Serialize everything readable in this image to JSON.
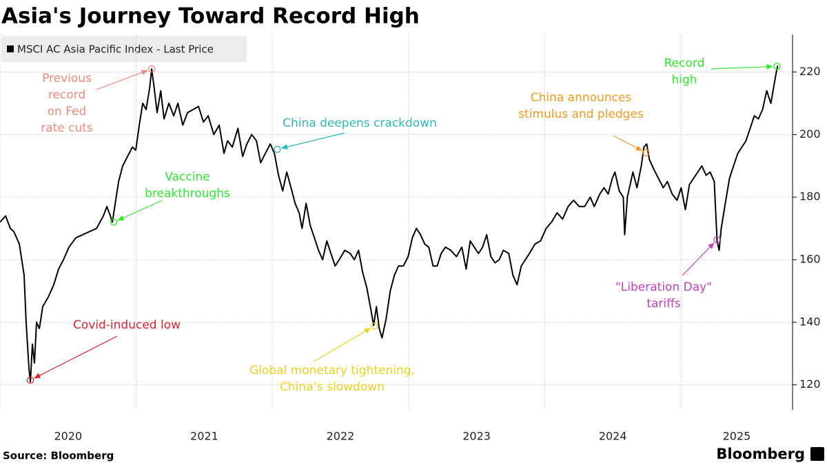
{
  "chart_data": {
    "type": "line",
    "title": "Asia's Journey Toward Record High",
    "source": "Source: Bloomberg",
    "brand": "Bloomberg",
    "legend": "top-left",
    "grid": true,
    "x": [
      2020.0,
      2020.041,
      2020.076,
      2020.101,
      2020.142,
      2020.177,
      2020.192,
      2020.213,
      2020.223,
      2020.238,
      2020.253,
      2020.268,
      2020.289,
      2020.314,
      2020.354,
      2020.395,
      2020.43,
      2020.466,
      2020.506,
      2020.557,
      2020.608,
      2020.658,
      2020.709,
      2020.759,
      2020.785,
      2020.81,
      2020.825,
      2020.846,
      2020.871,
      2020.901,
      2020.937,
      2020.972,
      2020.997,
      2021.023,
      2021.048,
      2021.073,
      2021.099,
      2021.114,
      2021.129,
      2021.154,
      2021.18,
      2021.205,
      2021.24,
      2021.276,
      2021.306,
      2021.342,
      2021.377,
      2021.418,
      2021.458,
      2021.494,
      2021.529,
      2021.57,
      2021.61,
      2021.645,
      2021.671,
      2021.706,
      2021.747,
      2021.782,
      2021.813,
      2021.848,
      2021.883,
      2021.914,
      2021.949,
      2021.985,
      2022.015,
      2022.045,
      2022.076,
      2022.106,
      2022.137,
      2022.167,
      2022.197,
      2022.218,
      2022.248,
      2022.278,
      2022.309,
      2022.339,
      2022.369,
      2022.4,
      2022.43,
      2022.461,
      2022.491,
      2022.532,
      2022.572,
      2022.602,
      2022.633,
      2022.663,
      2022.694,
      2022.724,
      2022.744,
      2022.764,
      2022.785,
      2022.805,
      2022.835,
      2022.866,
      2022.896,
      2022.926,
      2022.962,
      2022.997,
      2023.028,
      2023.058,
      2023.088,
      2023.119,
      2023.149,
      2023.18,
      2023.21,
      2023.24,
      2023.271,
      2023.311,
      2023.352,
      2023.392,
      2023.423,
      2023.453,
      2023.483,
      2023.514,
      2023.544,
      2023.574,
      2023.605,
      2023.635,
      2023.666,
      2023.696,
      2023.736,
      2023.767,
      2023.797,
      2023.828,
      2023.858,
      2023.888,
      2023.929,
      2023.969,
      2024.01,
      2024.05,
      2024.091,
      2024.131,
      2024.172,
      2024.212,
      2024.253,
      2024.293,
      2024.334,
      2024.364,
      2024.405,
      2024.435,
      2024.466,
      2024.496,
      2024.516,
      2024.547,
      2024.577,
      2024.587,
      2024.607,
      2024.648,
      2024.678,
      2024.709,
      2024.729,
      2024.749,
      2024.769,
      2024.8,
      2024.835,
      2024.871,
      2024.901,
      2024.936,
      2024.972,
      2025.002,
      2025.033,
      2025.063,
      2025.093,
      2025.124,
      2025.154,
      2025.185,
      2025.215,
      2025.245,
      2025.266,
      2025.281,
      2025.296,
      2025.326,
      2025.357,
      2025.387,
      2025.418,
      2025.448,
      2025.478,
      2025.509,
      2025.539,
      2025.569,
      2025.6,
      2025.63,
      2025.661,
      2025.681,
      2025.701,
      2025.711
    ],
    "series": [
      {
        "name": "MSCI AC Asia Pacific Index - Last Price",
        "color": "#000000",
        "values": [
          172,
          174,
          170,
          169,
          165,
          155,
          140,
          125,
          121,
          133,
          127,
          140,
          138,
          145,
          148,
          152,
          157,
          160,
          164,
          167,
          168,
          169,
          170,
          174,
          177,
          174,
          172,
          178,
          185,
          190,
          193,
          196,
          195,
          203,
          210,
          208,
          215,
          221,
          216,
          207,
          214,
          205,
          210,
          206,
          210,
          203,
          207,
          208,
          209,
          204,
          206,
          200,
          203,
          194,
          198,
          196,
          202,
          193,
          197,
          200,
          198,
          191,
          194,
          197,
          194,
          187,
          182,
          188,
          183,
          178,
          175,
          170,
          178,
          171,
          167,
          163,
          160,
          166,
          162,
          158,
          160,
          163,
          162,
          160,
          163,
          156,
          151,
          144,
          139,
          145,
          138,
          135,
          141,
          150,
          155,
          158,
          158,
          161,
          167,
          170,
          168,
          165,
          164,
          158,
          158,
          162,
          164,
          163,
          161,
          164,
          157,
          166,
          164,
          162,
          164,
          168,
          161,
          159,
          160,
          163,
          162,
          155,
          152,
          158,
          160,
          162,
          165,
          166,
          170,
          172,
          175,
          173,
          177,
          179,
          177,
          177,
          180,
          177,
          181,
          183,
          181,
          186,
          188,
          182,
          180,
          168,
          180,
          188,
          183,
          190,
          196,
          197,
          192,
          189,
          186,
          183,
          185,
          181,
          179,
          183,
          176,
          184,
          186,
          188,
          190,
          187,
          188,
          185,
          166,
          163,
          170,
          178,
          186,
          190,
          194,
          196,
          198,
          202,
          206,
          205,
          208,
          214,
          210,
          215,
          220,
          222
        ]
      }
    ],
    "xlim": [
      2020,
      2025.82
    ],
    "xticks": [
      {
        "value": 2020,
        "label": "2020"
      },
      {
        "value": 2021,
        "label": "2021"
      },
      {
        "value": 2022,
        "label": "2022"
      },
      {
        "value": 2023,
        "label": "2023"
      },
      {
        "value": 2024,
        "label": "2024"
      },
      {
        "value": 2025,
        "label": "2025"
      }
    ],
    "ylim": [
      112,
      232
    ],
    "yticks": [
      120,
      140,
      160,
      180,
      200,
      220
    ],
    "annotations": [
      {
        "text": [
          "Previous",
          "record",
          "on Fed",
          "rate cuts"
        ],
        "color": "#f08a78",
        "x": 2021.114,
        "y": 221
      },
      {
        "text": [
          "Vaccine",
          "breakthroughs"
        ],
        "color": "#2ee82e",
        "x": 2020.835,
        "y": 172
      },
      {
        "text": [
          "Covid-induced low"
        ],
        "color": "#e2202c",
        "x": 2020.223,
        "y": 121.5
      },
      {
        "text": [
          "China deepens crackdown"
        ],
        "color": "#2fb8b8",
        "x": 2022.036,
        "y": 195.3
      },
      {
        "text": [
          "Global monetary tightening,",
          "China’s slowdown"
        ],
        "color": "#ecd21c",
        "x": 2022.749,
        "y": 138.8
      },
      {
        "text": [
          "China announces",
          "stimulus and pledges"
        ],
        "color": "#f29a1c",
        "x": 2024.744,
        "y": 194.2
      },
      {
        "text": [
          "\"Liberation Day\"",
          "tariffs"
        ],
        "color": "#c23ec2",
        "x": 2025.266,
        "y": 166.4
      },
      {
        "text": [
          "Record",
          "high"
        ],
        "color": "#2ee82e",
        "x": 2025.706,
        "y": 221.8
      }
    ]
  }
}
